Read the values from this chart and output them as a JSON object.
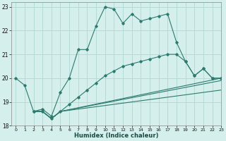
{
  "title": "",
  "xlabel": "Humidex (Indice chaleur)",
  "ylabel": "",
  "bg_color": "#d4efec",
  "grid_color": "#b0d8d4",
  "line_color": "#2d7a6e",
  "xlim": [
    -0.5,
    23
  ],
  "ylim": [
    18,
    23.2
  ],
  "xticks": [
    0,
    1,
    2,
    3,
    4,
    5,
    6,
    7,
    8,
    9,
    10,
    11,
    12,
    13,
    14,
    15,
    16,
    17,
    18,
    19,
    20,
    21,
    22,
    23
  ],
  "yticks": [
    18,
    19,
    20,
    21,
    22,
    23
  ],
  "line1_x": [
    0,
    1,
    2,
    3,
    4,
    5,
    6,
    7,
    8,
    9,
    10,
    11,
    12,
    13,
    14,
    15,
    16,
    17,
    18,
    19,
    20,
    21,
    22,
    23
  ],
  "line1_y": [
    20.0,
    19.7,
    18.6,
    18.7,
    18.4,
    19.4,
    20.0,
    21.2,
    21.2,
    22.2,
    23.0,
    22.9,
    22.3,
    22.7,
    22.4,
    22.5,
    22.6,
    22.7,
    21.5,
    20.7,
    20.1,
    20.4,
    20.0,
    20.0
  ],
  "line2_x": [
    2,
    3,
    4,
    5,
    6,
    7,
    8,
    9,
    10,
    11,
    12,
    13,
    14,
    15,
    16,
    17,
    18,
    19,
    20,
    21,
    22,
    23
  ],
  "line2_y": [
    18.6,
    18.6,
    18.3,
    18.6,
    18.9,
    19.2,
    19.5,
    19.8,
    20.1,
    20.3,
    20.5,
    20.6,
    20.7,
    20.8,
    20.9,
    21.0,
    21.0,
    20.7,
    20.1,
    20.4,
    20.0,
    20.0
  ],
  "line3_x": [
    2,
    3,
    4,
    5,
    23
  ],
  "line3_y": [
    18.6,
    18.6,
    18.3,
    18.6,
    20.0
  ],
  "line4_x": [
    2,
    3,
    4,
    5,
    23
  ],
  "line4_y": [
    18.6,
    18.6,
    18.3,
    18.6,
    19.9
  ],
  "line5_x": [
    2,
    3,
    4,
    5,
    23
  ],
  "line5_y": [
    18.6,
    18.6,
    18.3,
    18.6,
    19.5
  ]
}
